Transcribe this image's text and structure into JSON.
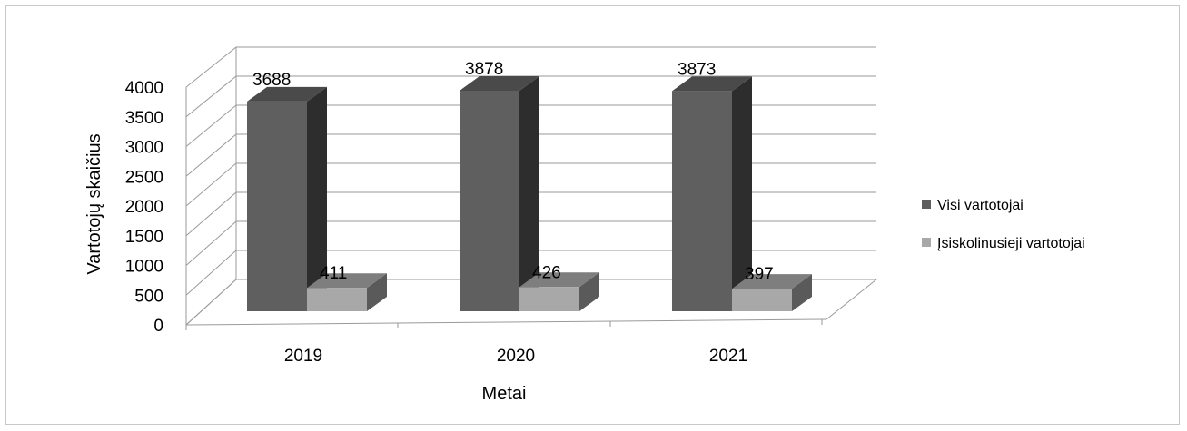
{
  "chart_data": {
    "type": "bar",
    "categories": [
      "2019",
      "2020",
      "2021"
    ],
    "series": [
      {
        "name": "Visi vartotojai",
        "values": [
          3688,
          3878,
          3873
        ],
        "labels": [
          "3688",
          "3878",
          "3873"
        ]
      },
      {
        "name": "Įsiskolinusieji vartotojai",
        "values": [
          411,
          426,
          397
        ],
        "labels": [
          "411",
          "426",
          "397"
        ]
      }
    ],
    "xlabel": "Metai",
    "ylabel": "Vartotojų skaičius",
    "ylim": [
      0,
      4000
    ],
    "yticks": [
      "0",
      "500",
      "1000",
      "1500",
      "2000",
      "2500",
      "3000",
      "3500",
      "4000"
    ],
    "grid": true,
    "legend": "right",
    "style": "3d-clustered-column",
    "colors": {
      "series1_front": "#5f5f5f",
      "series1_side": "#2d2d2d",
      "series1_top": "#4a4a4a",
      "series2_front": "#a8a8a8",
      "series2_side": "#5a5a5a",
      "series2_top": "#7e7e7e",
      "gridline": "#9a9a9a"
    }
  }
}
